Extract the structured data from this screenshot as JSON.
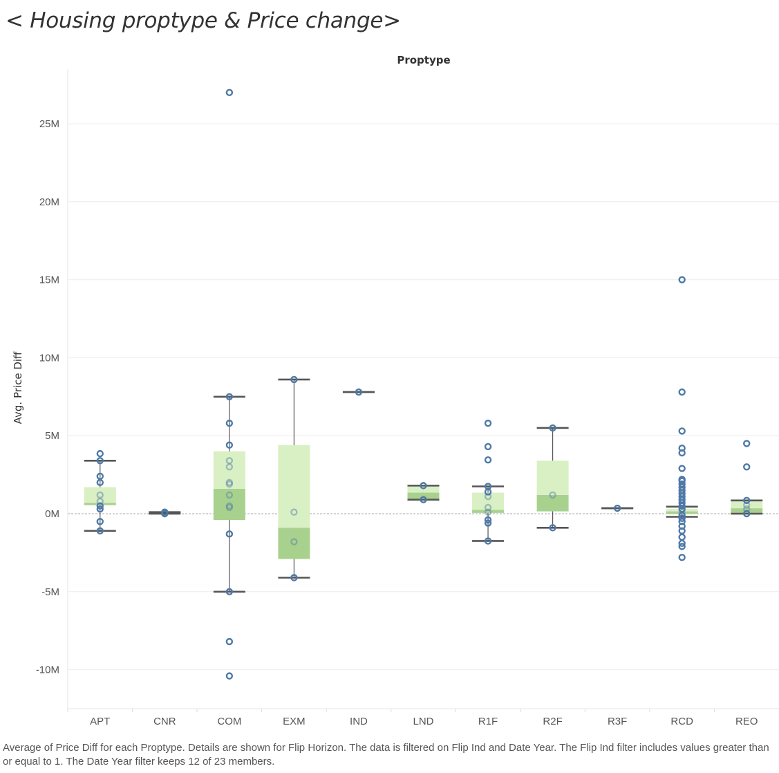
{
  "page_title": "< Housing proptype & Price change>",
  "caption": "Average of Price Diff for each Proptype.  Details are shown for Flip Horizon. The data is filtered on Flip Ind and Date Year. The Flip Ind filter includes values greater than or equal to 1. The Date Year filter keeps 12 of 23 members.",
  "chart_data": {
    "type": "boxplot",
    "title": "< Housing proptype & Price change>",
    "column_header": "Proptype",
    "ylabel": "Avg. Price Diff",
    "ylim": [
      -12.5,
      28.5
    ],
    "yunit": "M",
    "yticks": [
      -10,
      -5,
      0,
      5,
      10,
      15,
      20,
      25
    ],
    "ytick_labels": [
      "-10M",
      "-5M",
      "0M",
      "5M",
      "10M",
      "15M",
      "20M",
      "25M"
    ],
    "zero_reference_line": true,
    "colors": {
      "point": "#4e79a7",
      "box_lower": "#a9d18e",
      "box_upper": "#d9efc4",
      "whisker": "#555555",
      "gridline": "#ececec",
      "zero_line": "#aaaaaa"
    },
    "categories": [
      "APT",
      "CNR",
      "COM",
      "EXM",
      "IND",
      "LND",
      "R1F",
      "R2F",
      "R3F",
      "RCD",
      "REO"
    ],
    "boxes": [
      {
        "category": "APT",
        "whisker_low": -1.1,
        "q1": 0.55,
        "median": 0.7,
        "q3": 1.7,
        "whisker_high": 3.4,
        "points": [
          3.85,
          3.4,
          2.4,
          2.0,
          1.2,
          0.8,
          0.5,
          0.3,
          -0.5,
          -1.1
        ]
      },
      {
        "category": "CNR",
        "whisker_low": 0.0,
        "q1": 0.02,
        "median": 0.05,
        "q3": 0.08,
        "whisker_high": 0.1,
        "points": [
          0.1,
          0.0
        ]
      },
      {
        "category": "COM",
        "whisker_low": -5.0,
        "q1": -0.4,
        "median": 1.6,
        "q3": 4.0,
        "whisker_high": 7.5,
        "points": [
          27.0,
          7.5,
          5.8,
          4.4,
          3.4,
          3.0,
          2.0,
          1.9,
          1.2,
          0.5,
          0.4,
          -1.3,
          -5.0,
          -8.2,
          -10.4
        ]
      },
      {
        "category": "EXM",
        "whisker_low": -4.1,
        "q1": -2.9,
        "median": -0.9,
        "q3": 4.4,
        "whisker_high": 8.6,
        "points": [
          8.6,
          0.1,
          -1.8,
          -4.1
        ]
      },
      {
        "category": "IND",
        "whisker_low": 7.8,
        "q1": 7.8,
        "median": 7.8,
        "q3": 7.8,
        "whisker_high": 7.8,
        "points": [
          7.8
        ]
      },
      {
        "category": "LND",
        "whisker_low": 0.9,
        "q1": 0.9,
        "median": 1.35,
        "q3": 1.8,
        "whisker_high": 1.8,
        "points": [
          1.8,
          0.9
        ]
      },
      {
        "category": "R1F",
        "whisker_low": -1.75,
        "q1": 0.05,
        "median": 0.25,
        "q3": 1.35,
        "whisker_high": 1.75,
        "points": [
          5.8,
          4.3,
          3.45,
          1.75,
          1.4,
          1.1,
          0.4,
          0.1,
          -0.4,
          -0.6,
          -1.75
        ]
      },
      {
        "category": "R2F",
        "whisker_low": -0.9,
        "q1": 0.15,
        "median": 1.2,
        "q3": 3.4,
        "whisker_high": 5.5,
        "points": [
          5.5,
          1.2,
          -0.9
        ]
      },
      {
        "category": "R3F",
        "whisker_low": 0.35,
        "q1": 0.35,
        "median": 0.35,
        "q3": 0.35,
        "whisker_high": 0.35,
        "points": [
          0.35
        ]
      },
      {
        "category": "RCD",
        "whisker_low": -0.2,
        "q1": 0.0,
        "median": 0.15,
        "q3": 0.3,
        "whisker_high": 0.45,
        "points": [
          15.0,
          7.8,
          5.3,
          4.2,
          3.9,
          2.9,
          2.2,
          2.1,
          1.9,
          1.7,
          1.5,
          1.3,
          1.1,
          0.9,
          0.7,
          0.5,
          0.3,
          0.1,
          -0.1,
          -0.3,
          -0.5,
          -0.8,
          -1.1,
          -1.5,
          -1.9,
          -2.1,
          -2.8
        ]
      },
      {
        "category": "REO",
        "whisker_low": 0.0,
        "q1": 0.0,
        "median": 0.35,
        "q3": 0.85,
        "whisker_high": 0.85,
        "points": [
          4.5,
          3.0,
          0.85,
          0.55,
          0.3,
          0.0
        ]
      }
    ]
  }
}
